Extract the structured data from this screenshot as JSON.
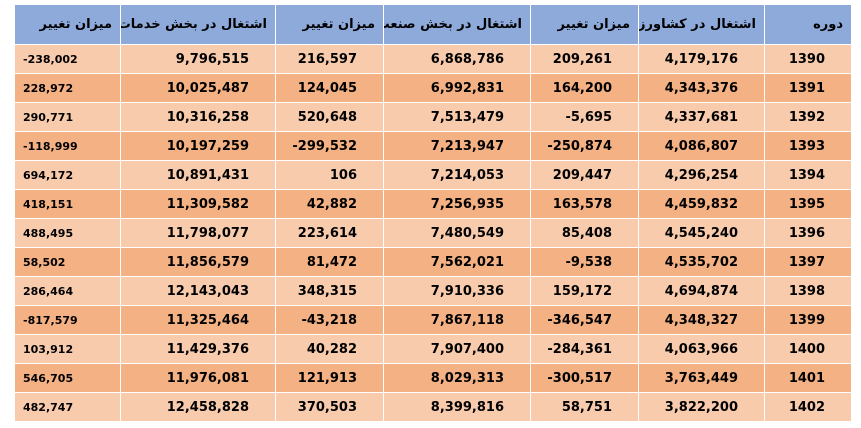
{
  "table": {
    "headers": {
      "change_services": "میزان تغییر",
      "emp_services": "اشتغال در بخش خدمات",
      "change_industry": "میزان تغییر",
      "emp_industry": "اشتغال در بخش صنعت",
      "change_agri": "میزان تغییر",
      "emp_agri": "اشتغال در کشاورزی",
      "period": "دوره"
    },
    "rows": [
      {
        "period": "1390",
        "emp_agri": "4,179,176",
        "change_agri": "209,261",
        "emp_industry": "6,868,786",
        "change_industry": "216,597",
        "emp_services": "9,796,515",
        "change_services": "-238,002"
      },
      {
        "period": "1391",
        "emp_agri": "4,343,376",
        "change_agri": "164,200",
        "emp_industry": "6,992,831",
        "change_industry": "124,045",
        "emp_services": "10,025,487",
        "change_services": "228,972"
      },
      {
        "period": "1392",
        "emp_agri": "4,337,681",
        "change_agri": "-5,695",
        "emp_industry": "7,513,479",
        "change_industry": "520,648",
        "emp_services": "10,316,258",
        "change_services": "290,771"
      },
      {
        "period": "1393",
        "emp_agri": "4,086,807",
        "change_agri": "-250,874",
        "emp_industry": "7,213,947",
        "change_industry": "-299,532",
        "emp_services": "10,197,259",
        "change_services": "-118,999"
      },
      {
        "period": "1394",
        "emp_agri": "4,296,254",
        "change_agri": "209,447",
        "emp_industry": "7,214,053",
        "change_industry": "106",
        "emp_services": "10,891,431",
        "change_services": "694,172"
      },
      {
        "period": "1395",
        "emp_agri": "4,459,832",
        "change_agri": "163,578",
        "emp_industry": "7,256,935",
        "change_industry": "42,882",
        "emp_services": "11,309,582",
        "change_services": "418,151"
      },
      {
        "period": "1396",
        "emp_agri": "4,545,240",
        "change_agri": "85,408",
        "emp_industry": "7,480,549",
        "change_industry": "223,614",
        "emp_services": "11,798,077",
        "change_services": "488,495"
      },
      {
        "period": "1397",
        "emp_agri": "4,535,702",
        "change_agri": "-9,538",
        "emp_industry": "7,562,021",
        "change_industry": "81,472",
        "emp_services": "11,856,579",
        "change_services": "58,502"
      },
      {
        "period": "1398",
        "emp_agri": "4,694,874",
        "change_agri": "159,172",
        "emp_industry": "7,910,336",
        "change_industry": "348,315",
        "emp_services": "12,143,043",
        "change_services": "286,464"
      },
      {
        "period": "1399",
        "emp_agri": "4,348,327",
        "change_agri": "-346,547",
        "emp_industry": "7,867,118",
        "change_industry": "-43,218",
        "emp_services": "11,325,464",
        "change_services": "-817,579"
      },
      {
        "period": "1400",
        "emp_agri": "4,063,966",
        "change_agri": "-284,361",
        "emp_industry": "7,907,400",
        "change_industry": "40,282",
        "emp_services": "11,429,376",
        "change_services": "103,912"
      },
      {
        "period": "1401",
        "emp_agri": "3,763,449",
        "change_agri": "-300,517",
        "emp_industry": "8,029,313",
        "change_industry": "121,913",
        "emp_services": "11,976,081",
        "change_services": "546,705"
      },
      {
        "period": "1402",
        "emp_agri": "3,822,200",
        "change_agri": "58,751",
        "emp_industry": "8,399,816",
        "change_industry": "370,503",
        "emp_services": "12,458,828",
        "change_services": "482,747"
      }
    ]
  },
  "colors": {
    "header_bg": "#8eaadb",
    "row_light": "#f8cbad",
    "row_dark": "#f4b183"
  }
}
